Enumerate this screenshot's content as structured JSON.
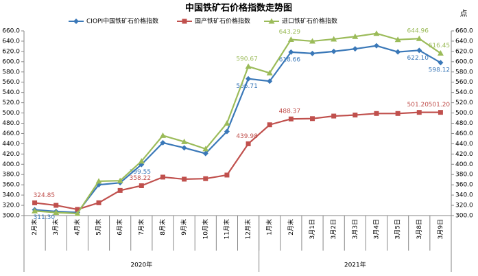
{
  "chart_data": {
    "type": "line",
    "title": "中国铁矿石价格指数走势图",
    "y2_unit": "点",
    "categories": [
      "2月末",
      "3月末",
      "4月末",
      "5月末",
      "6月末",
      "7月末",
      "8月末",
      "9月末",
      "10月末",
      "11月末",
      "12月末",
      "1月末",
      "2月末",
      "3月1日",
      "3月2日",
      "3月3日",
      "3月4日",
      "3月5日",
      "3月8日",
      "3月9日"
    ],
    "groups": [
      {
        "label": "2020年",
        "count": 11
      },
      {
        "label": "2021年",
        "count": 9
      }
    ],
    "series": [
      {
        "name": "CIOPI中国铁矿石价格指数",
        "color": "#3a78b8",
        "marker": "diamond",
        "label_side": "below",
        "values": [
          311.3,
          308,
          306,
          360,
          364,
          399.55,
          442,
          432,
          421,
          464,
          566.71,
          562,
          618.66,
          616,
          620,
          625,
          631,
          619,
          622.1,
          598.12
        ],
        "value_labels": [
          "311.30",
          null,
          null,
          null,
          null,
          "399.55",
          null,
          null,
          null,
          null,
          "566.71",
          null,
          "618.66",
          null,
          null,
          null,
          null,
          null,
          "622.10",
          "598.12"
        ]
      },
      {
        "name": "国产铁矿石价格指数",
        "color": "#c0504d",
        "marker": "square",
        "label_side": "above",
        "values": [
          324.85,
          320,
          312,
          325,
          349,
          358.22,
          375,
          371,
          372,
          379,
          439.98,
          477,
          488.37,
          489,
          494,
          496,
          499,
          499,
          501.2,
          501.2
        ],
        "value_labels": [
          "324.85",
          null,
          null,
          null,
          null,
          "358.22",
          null,
          null,
          null,
          null,
          "439.98",
          null,
          "488.37",
          null,
          null,
          null,
          null,
          null,
          "501.20",
          "501.20"
        ]
      },
      {
        "name": "进口铁矿石价格指数",
        "color": "#9bbb59",
        "marker": "triangle",
        "label_side": "above",
        "values": [
          309,
          306,
          304,
          367,
          368,
          406,
          456,
          444,
          430,
          480,
          590.67,
          578,
          643.29,
          640,
          644,
          649,
          655,
          643,
          644.96,
          616.45
        ],
        "value_labels": [
          null,
          null,
          null,
          null,
          null,
          null,
          null,
          null,
          null,
          null,
          "590.67",
          null,
          "643.29",
          null,
          null,
          null,
          null,
          null,
          "644.96",
          "616.45"
        ]
      }
    ],
    "ylim": [
      300,
      660
    ],
    "yticks": [
      {
        "value": 300,
        "label": "300.0"
      },
      {
        "value": 320,
        "label": "320.0"
      },
      {
        "value": 340,
        "label": "340.0"
      },
      {
        "value": 360,
        "label": "360.0"
      },
      {
        "value": 380,
        "label": "380.0"
      },
      {
        "value": 400,
        "label": "400.0"
      },
      {
        "value": 420,
        "label": "420.0"
      },
      {
        "value": 440,
        "label": "440.0"
      },
      {
        "value": 460,
        "label": "460.0"
      },
      {
        "value": 480,
        "label": "480.0"
      },
      {
        "value": 500,
        "label": "500.0"
      },
      {
        "value": 520,
        "label": "520.0"
      },
      {
        "value": 540,
        "label": "540.0"
      },
      {
        "value": 560,
        "label": "560.0"
      },
      {
        "value": 580,
        "label": "580.0"
      },
      {
        "value": 600,
        "label": "600.0"
      },
      {
        "value": 620,
        "label": "620.0"
      },
      {
        "value": 640,
        "label": "640.0"
      },
      {
        "value": 660,
        "label": "660.0"
      }
    ],
    "y2lim": [
      300,
      660
    ],
    "y2ticks": [
      {
        "value": 300,
        "label": "300.0"
      },
      {
        "value": 320,
        "label": "320.0"
      },
      {
        "value": 340,
        "label": "340.0"
      },
      {
        "value": 360,
        "label": "360.0"
      },
      {
        "value": 380,
        "label": "380.0"
      },
      {
        "value": 400,
        "label": "400.0"
      },
      {
        "value": 420,
        "label": "420.0"
      },
      {
        "value": 440,
        "label": "440.0"
      },
      {
        "value": 460,
        "label": "460.0"
      },
      {
        "value": 480,
        "label": "480.0"
      },
      {
        "value": 500,
        "label": "500.0"
      },
      {
        "value": 520,
        "label": "520.0"
      },
      {
        "value": 540,
        "label": "540.0"
      },
      {
        "value": 560,
        "label": "560.0"
      },
      {
        "value": 580,
        "label": "580.0"
      },
      {
        "value": 600,
        "label": "600.0"
      },
      {
        "value": 620,
        "label": "620.0"
      },
      {
        "value": 640,
        "label": "640.0"
      },
      {
        "value": 660,
        "label": "660.0"
      }
    ],
    "grid": false
  }
}
